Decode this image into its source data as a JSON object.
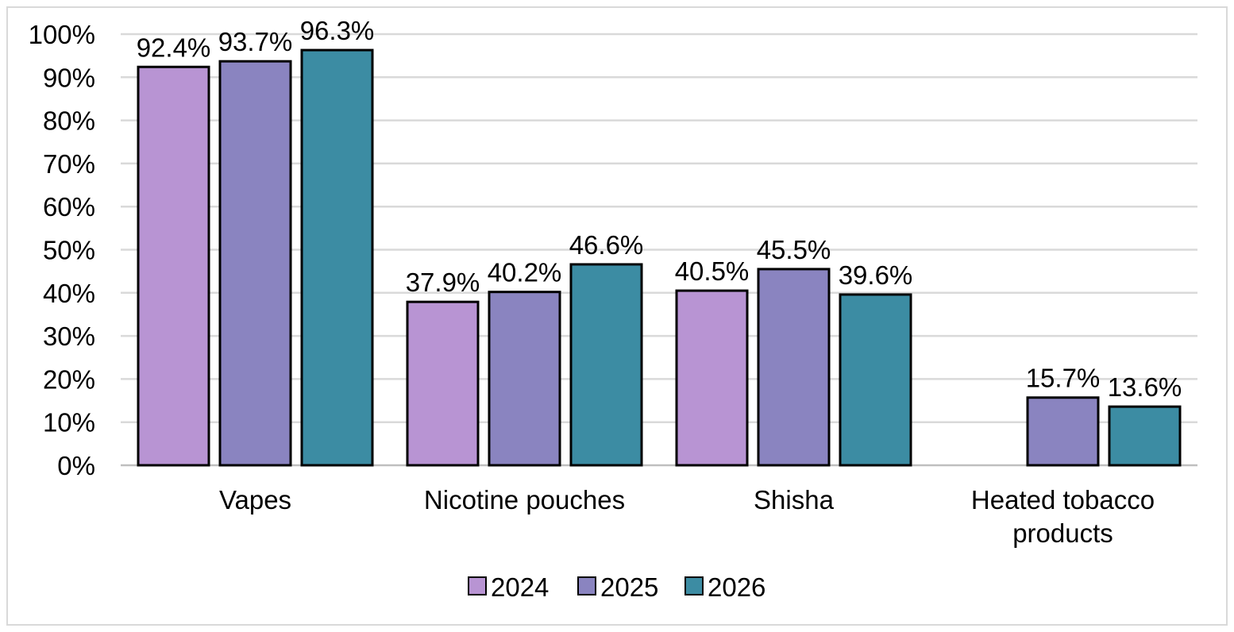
{
  "chart_data": {
    "type": "bar",
    "categories": [
      [
        "Vapes"
      ],
      [
        "Nicotine pouches"
      ],
      [
        "Shisha"
      ],
      [
        "Heated tobacco",
        "products"
      ]
    ],
    "series": [
      {
        "name": "2024",
        "color": "#b894d3",
        "values": [
          92.4,
          37.9,
          40.5,
          null
        ]
      },
      {
        "name": "2025",
        "color": "#8a84c0",
        "values": [
          93.7,
          40.2,
          45.5,
          15.7
        ]
      },
      {
        "name": "2026",
        "color": "#3c8ca3",
        "values": [
          96.3,
          46.6,
          39.6,
          13.6
        ]
      }
    ],
    "ylim": [
      0,
      100
    ],
    "yticks": [
      "0%",
      "10%",
      "20%",
      "30%",
      "40%",
      "50%",
      "60%",
      "70%",
      "80%",
      "90%",
      "100%"
    ],
    "data_labels": [
      [
        "92.4%",
        "37.9%",
        "40.5%",
        null
      ],
      [
        "93.7%",
        "40.2%",
        "45.5%",
        "15.7%"
      ],
      [
        "96.3%",
        "46.6%",
        "39.6%",
        "13.6%"
      ]
    ],
    "grid": true,
    "legend_position": "bottom",
    "title": "",
    "xlabel": "",
    "ylabel": ""
  }
}
